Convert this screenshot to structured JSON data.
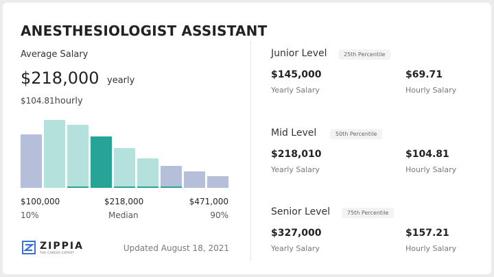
{
  "title": "ANESTHESIOLOGIST ASSISTANT",
  "average": {
    "label": "Average Salary",
    "yearly_value": "$218,000",
    "yearly_unit": "yearly",
    "hourly_value": "$104.81",
    "hourly_unit": "hourly"
  },
  "chart_data": {
    "type": "bar",
    "description_free": true,
    "values": [
      78,
      99,
      92,
      75,
      58,
      43,
      32,
      24,
      17
    ],
    "highlight_index": 3,
    "bar_groups": [
      "outer",
      "inner",
      "inner",
      "median",
      "inner",
      "inner",
      "outer",
      "outer",
      "outer"
    ],
    "colors": {
      "outer": "#b6bfd9",
      "inner": "#b5e1dd",
      "median": "#27a496",
      "underline": "#27a496"
    },
    "tick_labels": [
      {
        "value": "$100,000",
        "sub": "10%"
      },
      {
        "value": "$218,000",
        "sub": "Median"
      },
      {
        "value": "$471,000",
        "sub": "90%"
      }
    ]
  },
  "brand": {
    "name": "ZIPPIA",
    "tagline": "THE CAREER EXPERT",
    "color": "#3a6fd8"
  },
  "updated": "Updated August 18, 2021",
  "levels": [
    {
      "name": "Junior Level",
      "percentile": "25th Percentile",
      "yearly": "$145,000",
      "yearly_label": "Yearly Salary",
      "hourly": "$69.71",
      "hourly_label": "Hourly Salary"
    },
    {
      "name": "Mid Level",
      "percentile": "50th Percentile",
      "yearly": "$218,010",
      "yearly_label": "Yearly Salary",
      "hourly": "$104.81",
      "hourly_label": "Hourly Salary"
    },
    {
      "name": "Senior Level",
      "percentile": "75th Percentile",
      "yearly": "$327,000",
      "yearly_label": "Yearly Salary",
      "hourly": "$157.21",
      "hourly_label": "Hourly Salary"
    }
  ]
}
